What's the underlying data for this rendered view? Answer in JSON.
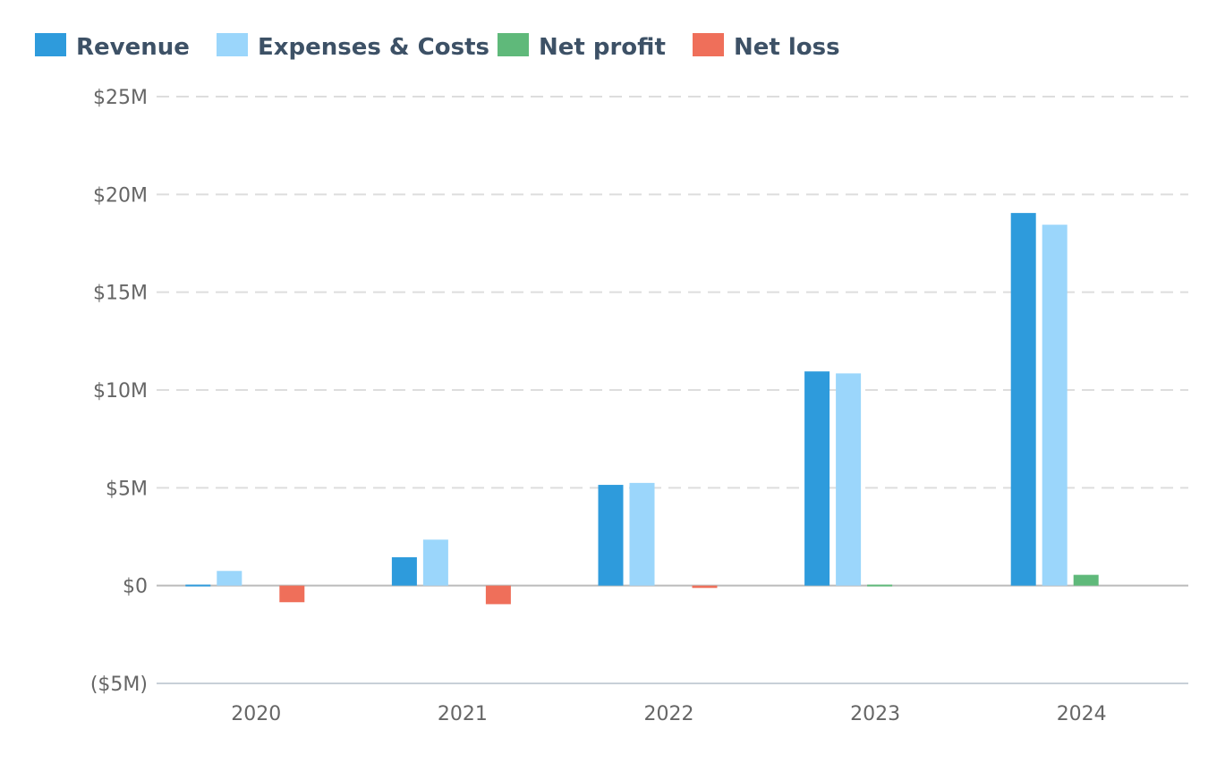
{
  "chart_data": {
    "type": "bar",
    "categories": [
      "2020",
      "2021",
      "2022",
      "2023",
      "2024"
    ],
    "series": [
      {
        "name": "Revenue",
        "color": "#2e9bdc",
        "values": [
          0.05,
          1.45,
          5.15,
          10.95,
          19.05
        ]
      },
      {
        "name": "Expenses & Costs",
        "color": "#9bd6fb",
        "values": [
          0.75,
          2.35,
          5.25,
          10.85,
          18.45
        ]
      },
      {
        "name": "Net profit",
        "color": "#5fb97a",
        "values": [
          null,
          null,
          null,
          0.05,
          0.55
        ]
      },
      {
        "name": "Net loss",
        "color": "#ef6f5a",
        "values": [
          -0.85,
          -0.95,
          -0.12,
          null,
          null
        ]
      }
    ],
    "y_ticks": [
      {
        "value": 25,
        "label": "$25M"
      },
      {
        "value": 20,
        "label": "$20M"
      },
      {
        "value": 15,
        "label": "$15M"
      },
      {
        "value": 10,
        "label": "$10M"
      },
      {
        "value": 5,
        "label": "$5M"
      },
      {
        "value": 0,
        "label": "$0"
      },
      {
        "value": -5,
        "label": "($5M)"
      }
    ],
    "ylim": [
      -5,
      25
    ],
    "y_unit": "$M",
    "grid": "horizontal dashed",
    "legend_position": "top-left",
    "title": "",
    "xlabel": "",
    "ylabel": ""
  }
}
